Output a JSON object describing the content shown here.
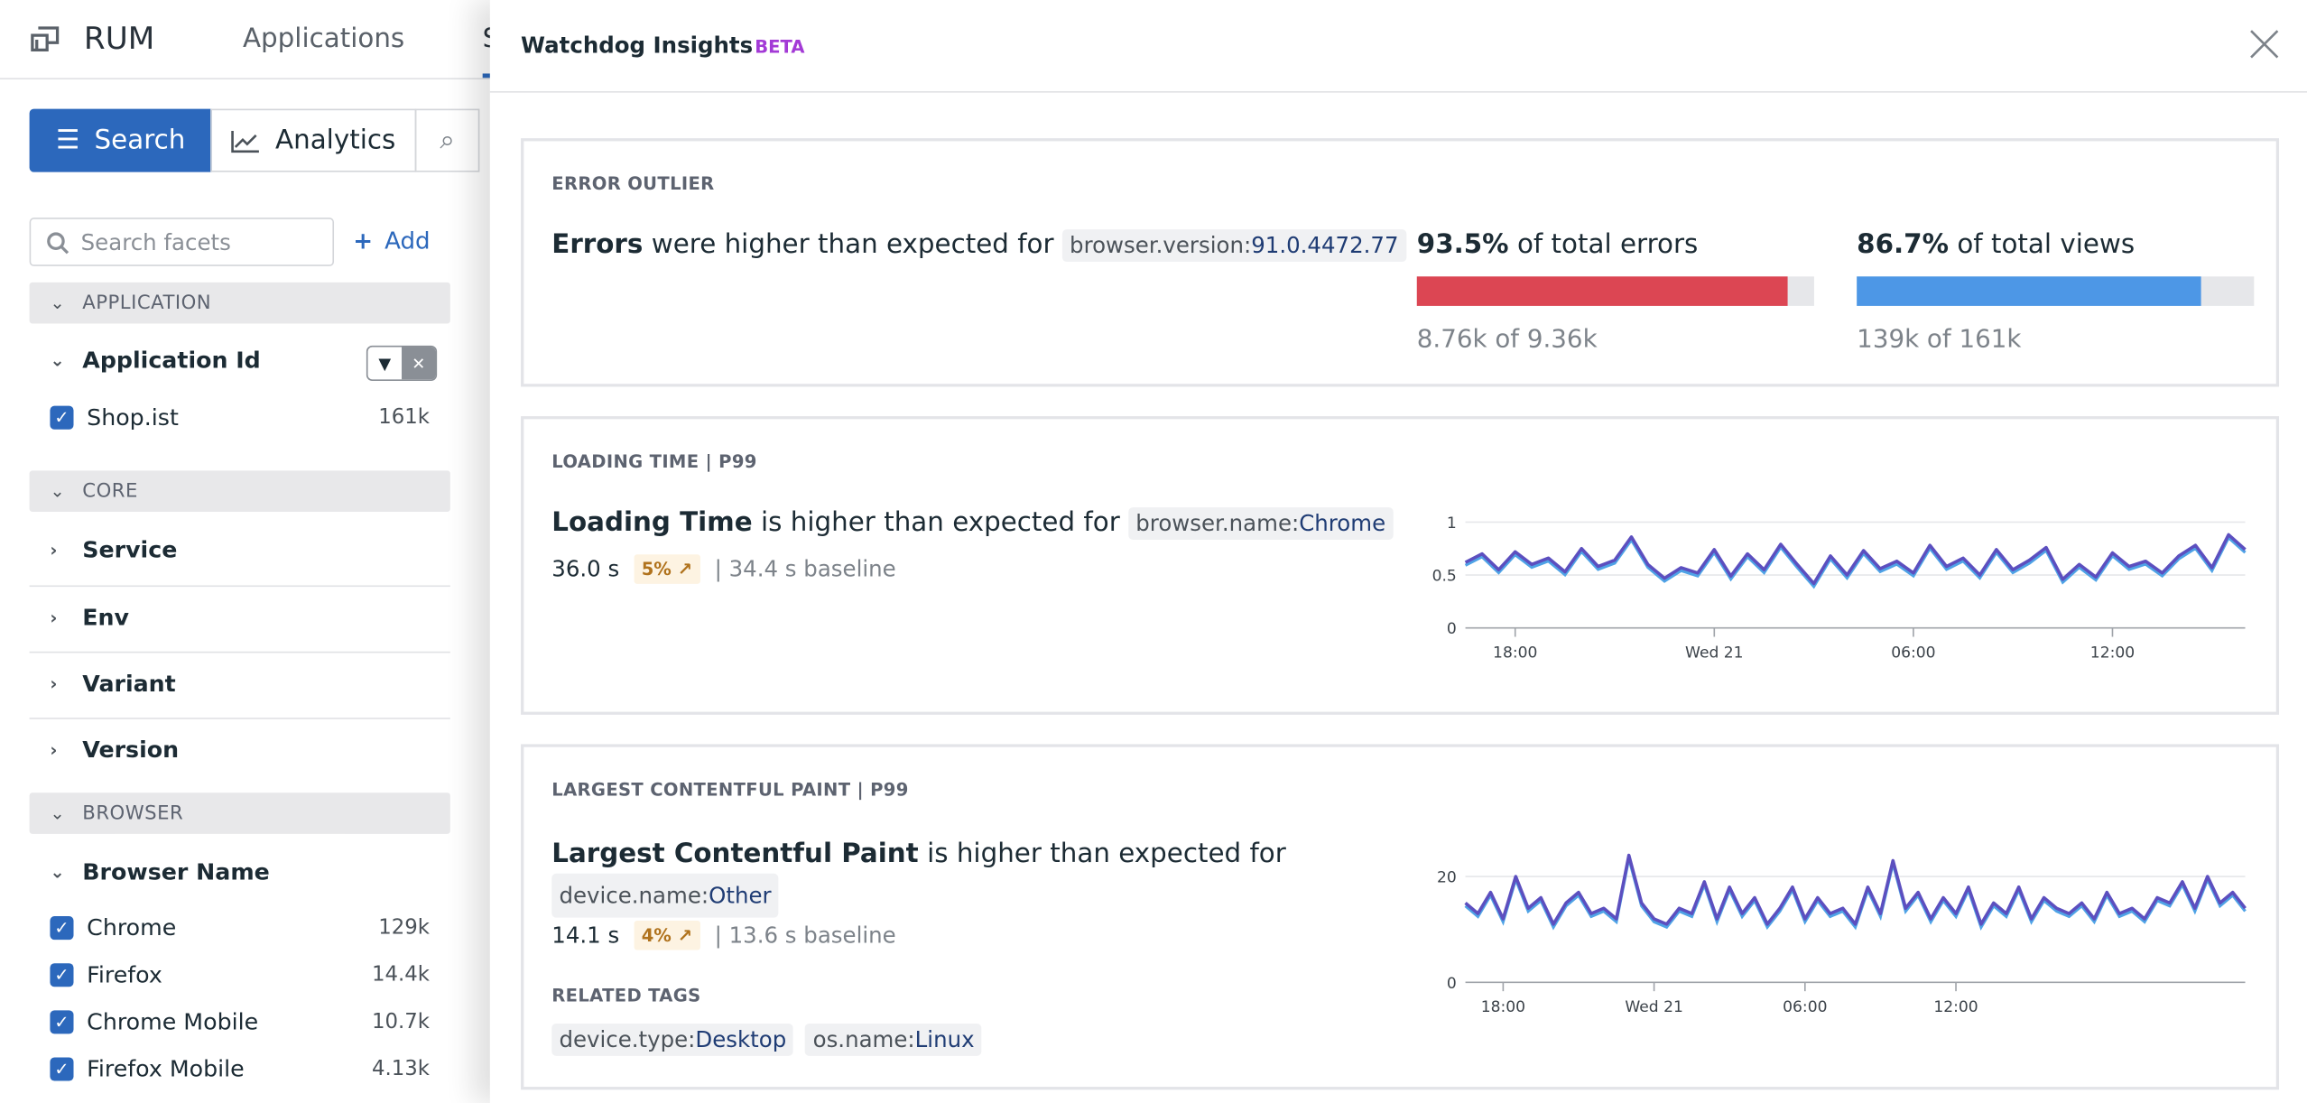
{
  "header": {
    "title": "RUM",
    "nav": [
      "Applications",
      "S"
    ]
  },
  "toolbar": {
    "search_label": "Search",
    "analytics_label": "Analytics"
  },
  "facets": {
    "search_placeholder": "Search facets",
    "add_label": "Add",
    "sections": {
      "application": "APPLICATION",
      "core": "CORE",
      "browser": "BROWSER"
    },
    "application_id": {
      "label": "Application Id",
      "values": [
        {
          "name": "Shop.ist",
          "count": "161k",
          "checked": true
        }
      ]
    },
    "core_facets": [
      "Service",
      "Env",
      "Variant",
      "Version"
    ],
    "browser_name": {
      "label": "Browser Name",
      "values": [
        {
          "name": "Chrome",
          "count": "129k",
          "checked": true
        },
        {
          "name": "Firefox",
          "count": "14.4k",
          "checked": true
        },
        {
          "name": "Chrome Mobile",
          "count": "10.7k",
          "checked": true
        },
        {
          "name": "Firefox Mobile",
          "count": "4.13k",
          "checked": true
        }
      ]
    }
  },
  "panel": {
    "title": "Watchdog Insights",
    "badge": "BETA",
    "error_outlier": {
      "label": "ERROR OUTLIER",
      "lead": "Errors",
      "text": "were higher than expected for",
      "tag_key": "browser.version:",
      "tag_val": "91.0.4472.77",
      "errors_pct": "93.5%",
      "errors_text": "of total errors",
      "errors_fill": 0.935,
      "errors_count": "8.76k of 9.36k",
      "views_pct": "86.7%",
      "views_text": "of total views",
      "views_fill": 0.867,
      "views_count": "139k of 161k"
    },
    "loading": {
      "label": "LOADING TIME | P99",
      "lead": "Loading Time",
      "text": "is higher than expected for",
      "tag_key": "browser.name:",
      "tag_val": "Chrome",
      "value": "36.0 s",
      "pct": "5% ↗",
      "baseline": "| 34.4 s baseline"
    },
    "lcp": {
      "label": "LARGEST CONTENTFUL PAINT | P99",
      "lead": "Largest Contentful Paint",
      "text": "is higher than expected for",
      "tag_key": "device.name:",
      "tag_val": "Other",
      "value": "14.1 s",
      "pct": "4% ↗",
      "baseline": "| 13.6 s baseline",
      "related_label": "RELATED TAGS",
      "related": [
        {
          "key": "device.type:",
          "val": "Desktop"
        },
        {
          "key": "os.name:",
          "val": "Linux"
        }
      ]
    }
  },
  "colors": {
    "primary": "#2c68bc",
    "error_bar": "#dc4653",
    "views_bar": "#4d97e6",
    "series": "#5c4fbf",
    "baseline": "#4fa3e6",
    "beta": "#a33ad6"
  },
  "chart_data": [
    {
      "type": "line",
      "xlabel": "",
      "ylabel": "",
      "ylim": [
        0,
        1
      ],
      "yticks": [
        "0",
        "0.5",
        "1"
      ],
      "xticks": [
        "18:00",
        "Wed 21",
        "06:00",
        "12:00"
      ],
      "x_start": "Tue 16:30",
      "x_step_minutes": 30,
      "values": [
        0.62,
        0.7,
        0.55,
        0.72,
        0.6,
        0.66,
        0.53,
        0.75,
        0.58,
        0.64,
        0.86,
        0.6,
        0.47,
        0.57,
        0.52,
        0.74,
        0.49,
        0.7,
        0.55,
        0.79,
        0.6,
        0.42,
        0.68,
        0.5,
        0.73,
        0.56,
        0.63,
        0.52,
        0.78,
        0.58,
        0.66,
        0.5,
        0.74,
        0.55,
        0.64,
        0.76,
        0.46,
        0.6,
        0.48,
        0.71,
        0.58,
        0.63,
        0.52,
        0.68,
        0.78,
        0.57,
        0.88,
        0.74
      ]
    },
    {
      "type": "line",
      "xlabel": "",
      "ylabel": "",
      "ylim": [
        0,
        25
      ],
      "yticks": [
        "0",
        "20"
      ],
      "xticks": [
        "18:00",
        "Wed 21",
        "06:00",
        "12:00"
      ],
      "x_start": "Tue 16:30",
      "x_step_minutes": 30,
      "values": [
        15,
        13,
        17,
        12,
        20,
        14,
        16,
        11,
        15,
        17,
        13,
        14,
        12,
        24,
        15,
        12,
        11,
        14,
        13,
        19,
        12,
        18,
        13,
        16,
        11,
        14,
        18,
        12,
        16,
        13,
        14,
        11,
        18,
        13,
        23,
        14,
        17,
        12,
        16,
        13,
        18,
        11,
        15,
        13,
        18,
        12,
        16,
        14,
        13,
        15,
        12,
        17,
        13,
        14,
        12,
        16,
        15,
        19,
        14,
        20,
        15,
        17,
        14
      ]
    }
  ]
}
